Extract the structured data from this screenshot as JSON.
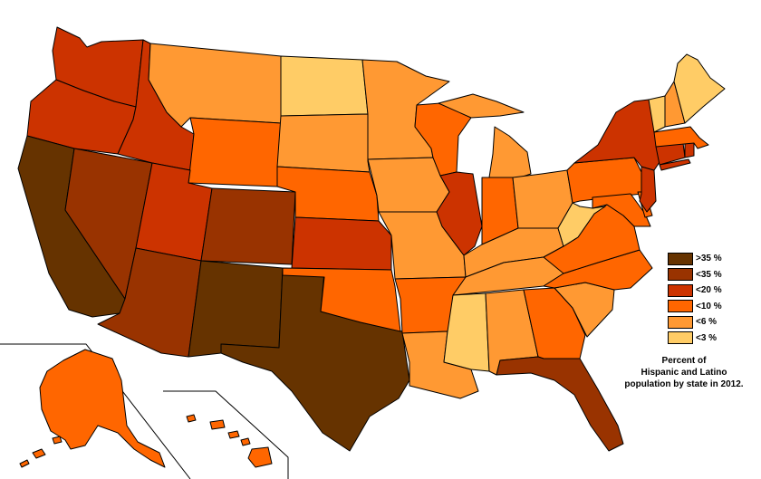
{
  "colors": {
    "gt35": "#663300",
    "lt35": "#993300",
    "lt20": "#cc3300",
    "lt10": "#ff6600",
    "lt6": "#ff9933",
    "lt3": "#ffcc66"
  },
  "legend": [
    {
      "label": ">35 %",
      "key": "gt35"
    },
    {
      "label": "<35 %",
      "key": "lt35"
    },
    {
      "label": "<20 %",
      "key": "lt20"
    },
    {
      "label": "<10 %",
      "key": "lt10"
    },
    {
      "label": "<6 %",
      "key": "lt6"
    },
    {
      "label": "<3 %",
      "key": "lt3"
    }
  ],
  "caption": {
    "line1": "Percent of",
    "line2": "Hispanic and Latino",
    "line3": "population by state in 2012."
  },
  "states": {
    "WA": "lt20",
    "OR": "lt20",
    "CA": "gt35",
    "NV": "lt35",
    "ID": "lt20",
    "MT": "lt6",
    "WY": "lt10",
    "UT": "lt20",
    "AZ": "lt35",
    "CO": "lt35",
    "NM": "gt35",
    "TX": "gt35",
    "ND": "lt3",
    "SD": "lt6",
    "NE": "lt10",
    "KS": "lt20",
    "OK": "lt10",
    "MN": "lt6",
    "IA": "lt6",
    "MO": "lt6",
    "AR": "lt10",
    "LA": "lt6",
    "WI": "lt10",
    "IL": "lt20",
    "MI": "lt6",
    "IN": "lt10",
    "OH": "lt6",
    "KY": "lt6",
    "TN": "lt6",
    "MS": "lt3",
    "AL": "lt6",
    "GA": "lt10",
    "FL": "lt35",
    "SC": "lt6",
    "NC": "lt10",
    "VA": "lt10",
    "WV": "lt3",
    "PA": "lt10",
    "NY": "lt20",
    "NJ": "lt20",
    "DE": "lt10",
    "MD": "lt10",
    "CT": "lt20",
    "RI": "lt20",
    "MA": "lt10",
    "VT": "lt3",
    "NH": "lt6",
    "ME": "lt3",
    "AK": "lt10",
    "HI": "lt10"
  }
}
